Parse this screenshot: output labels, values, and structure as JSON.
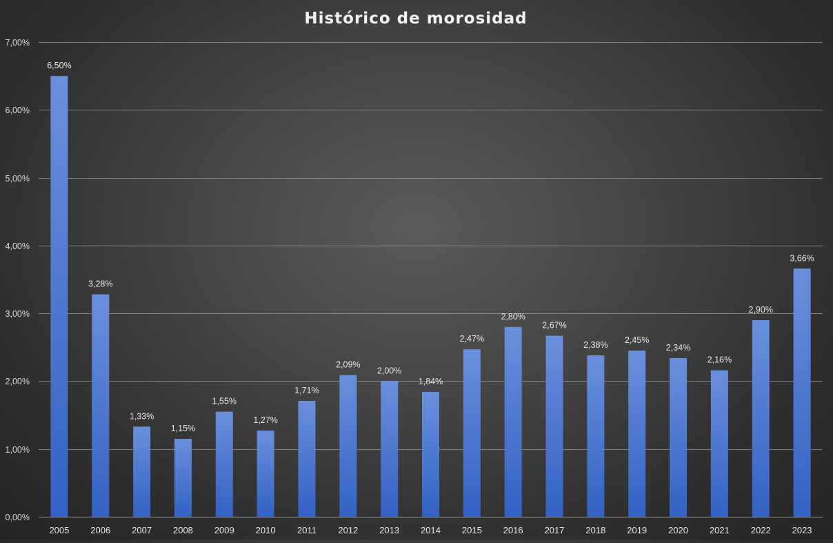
{
  "chart_data": {
    "type": "bar",
    "title": "Histórico de morosidad",
    "xlabel": "",
    "ylabel": "",
    "categories": [
      "2005",
      "2006",
      "2007",
      "2008",
      "2009",
      "2010",
      "2011",
      "2012",
      "2013",
      "2014",
      "2015",
      "2016",
      "2017",
      "2018",
      "2019",
      "2020",
      "2021",
      "2022",
      "2023"
    ],
    "values": [
      6.5,
      3.28,
      1.33,
      1.15,
      1.55,
      1.27,
      1.71,
      2.09,
      2.0,
      1.84,
      2.47,
      2.8,
      2.67,
      2.38,
      2.45,
      2.34,
      2.16,
      2.9,
      3.66
    ],
    "value_labels": [
      "6,50%",
      "3,28%",
      "1,33%",
      "1,15%",
      "1,55%",
      "1,27%",
      "1,71%",
      "2,09%",
      "2,00%",
      "1,84%",
      "2,47%",
      "2,80%",
      "2,67%",
      "2,38%",
      "2,45%",
      "2,34%",
      "2,16%",
      "2,90%",
      "3,66%"
    ],
    "ylim": [
      0,
      7
    ],
    "y_ticks": [
      0,
      1,
      2,
      3,
      4,
      5,
      6,
      7
    ],
    "y_tick_labels": [
      "0,00%",
      "1,00%",
      "2,00%",
      "3,00%",
      "4,00%",
      "5,00%",
      "6,00%",
      "7,00%"
    ],
    "grid": true,
    "legend": "none",
    "colors": {
      "bar_top": "#6a8fdb",
      "bar_bottom": "#3462c4",
      "gridline": "#9a9a9a",
      "text": "#e6e6e6",
      "background_center": "#5b5b5b",
      "background_edge": "#242424"
    }
  }
}
